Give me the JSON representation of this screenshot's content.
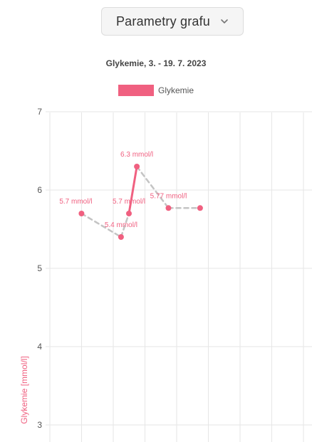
{
  "controls": {
    "params_button": {
      "label": "Parametry grafu",
      "icon": "chevron-down-icon"
    }
  },
  "colors": {
    "series": "#f06080",
    "gap_line": "#c4c4c4",
    "grid": "#e6e6e6",
    "ylabel": "#f06080"
  },
  "chart_data": {
    "type": "line",
    "title": "Glykemie,  3. - 19. 7. 2023",
    "legend": {
      "position": "top",
      "entries": [
        "Glykemie"
      ]
    },
    "xlabel": "",
    "ylabel": "Glykemie [mmol/l]",
    "ylim": [
      3,
      7
    ],
    "yticks": [
      "3",
      "4",
      "5",
      "6",
      "7"
    ],
    "grid": true,
    "series": [
      {
        "name": "Glykemie",
        "points": [
          {
            "x": 3.0,
            "y": 5.7,
            "label": "5.7 mmol/l"
          },
          {
            "x": 5.5,
            "y": 5.4,
            "label": "5.4 mmol/l"
          },
          {
            "x": 6.0,
            "y": 5.7,
            "label": "5.7 mmol/l"
          },
          {
            "x": 6.5,
            "y": 6.3,
            "label": "6.3 mmol/l"
          },
          {
            "x": 8.5,
            "y": 5.77,
            "label": "5.77 mmol/l"
          },
          {
            "x": 10.5,
            "y": 5.77,
            "label": ""
          }
        ],
        "solid_segments": [
          [
            2,
            3
          ]
        ]
      }
    ]
  }
}
